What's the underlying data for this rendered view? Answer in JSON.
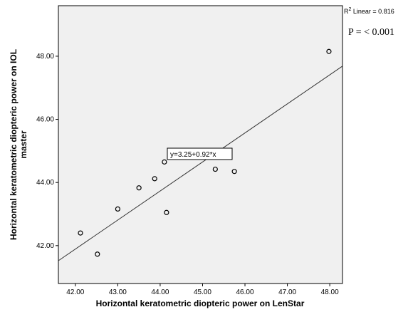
{
  "chart_data": {
    "type": "scatter",
    "xlabel": "Horizontal keratometric diopteric power on LenStar",
    "ylabel_lines": [
      "Horizontal keratometric diopteric power on IOL",
      "master"
    ],
    "xlim": [
      41.6,
      48.3
    ],
    "ylim": [
      40.8,
      49.6
    ],
    "xticks": [
      42,
      43,
      44,
      45,
      46,
      47,
      48
    ],
    "xtick_labels": [
      "42.00",
      "43.00",
      "44.00",
      "45.00",
      "46.00",
      "47.00",
      "48.00"
    ],
    "yticks": [
      42,
      44,
      46,
      48
    ],
    "ytick_labels": [
      "42.00",
      "44.00",
      "46.00",
      "48.00"
    ],
    "points": [
      {
        "x": 42.12,
        "y": 42.4
      },
      {
        "x": 42.52,
        "y": 41.73
      },
      {
        "x": 43.0,
        "y": 43.16
      },
      {
        "x": 43.5,
        "y": 43.83
      },
      {
        "x": 43.87,
        "y": 44.12
      },
      {
        "x": 44.1,
        "y": 44.65
      },
      {
        "x": 44.15,
        "y": 43.05
      },
      {
        "x": 44.4,
        "y": 44.8
      },
      {
        "x": 44.52,
        "y": 45.0
      },
      {
        "x": 45.3,
        "y": 44.42
      },
      {
        "x": 45.75,
        "y": 44.35
      },
      {
        "x": 47.98,
        "y": 48.15
      }
    ],
    "fit": {
      "intercept": 3.25,
      "slope": 0.92,
      "label": "y=3.25+0.92*x"
    },
    "r2_label_prefix": "R",
    "r2_label_sup": "2",
    "r2_label_rest": " Linear = 0.816",
    "p_value_label": "P = < 0.001",
    "grid": false,
    "legend": "none"
  }
}
